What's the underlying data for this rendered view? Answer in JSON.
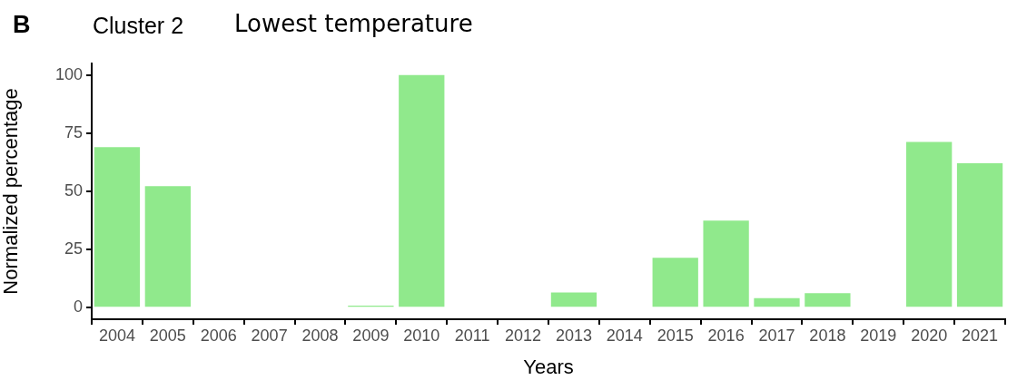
{
  "chart_data": {
    "type": "bar",
    "title": "Cluster 2",
    "subtitle": "Lowest temperature",
    "annotations": [
      "B"
    ],
    "xlabel": "Years",
    "ylabel": "Normalized percentage",
    "categories": [
      "2004",
      "2005",
      "2006",
      "2007",
      "2008",
      "2009",
      "2010",
      "2011",
      "2012",
      "2013",
      "2014",
      "2015",
      "2016",
      "2017",
      "2018",
      "2019",
      "2020",
      "2021"
    ],
    "values": [
      69,
      52.2,
      0,
      0,
      0,
      0.8,
      100,
      0,
      0,
      6.5,
      0,
      21.4,
      37.4,
      4.1,
      6.2,
      0,
      71.2,
      62
    ],
    "color": "#90e98c",
    "ylim": [
      -5,
      105
    ],
    "yticks": [
      0,
      25,
      50,
      75,
      100
    ],
    "grid": false,
    "legend": false
  }
}
